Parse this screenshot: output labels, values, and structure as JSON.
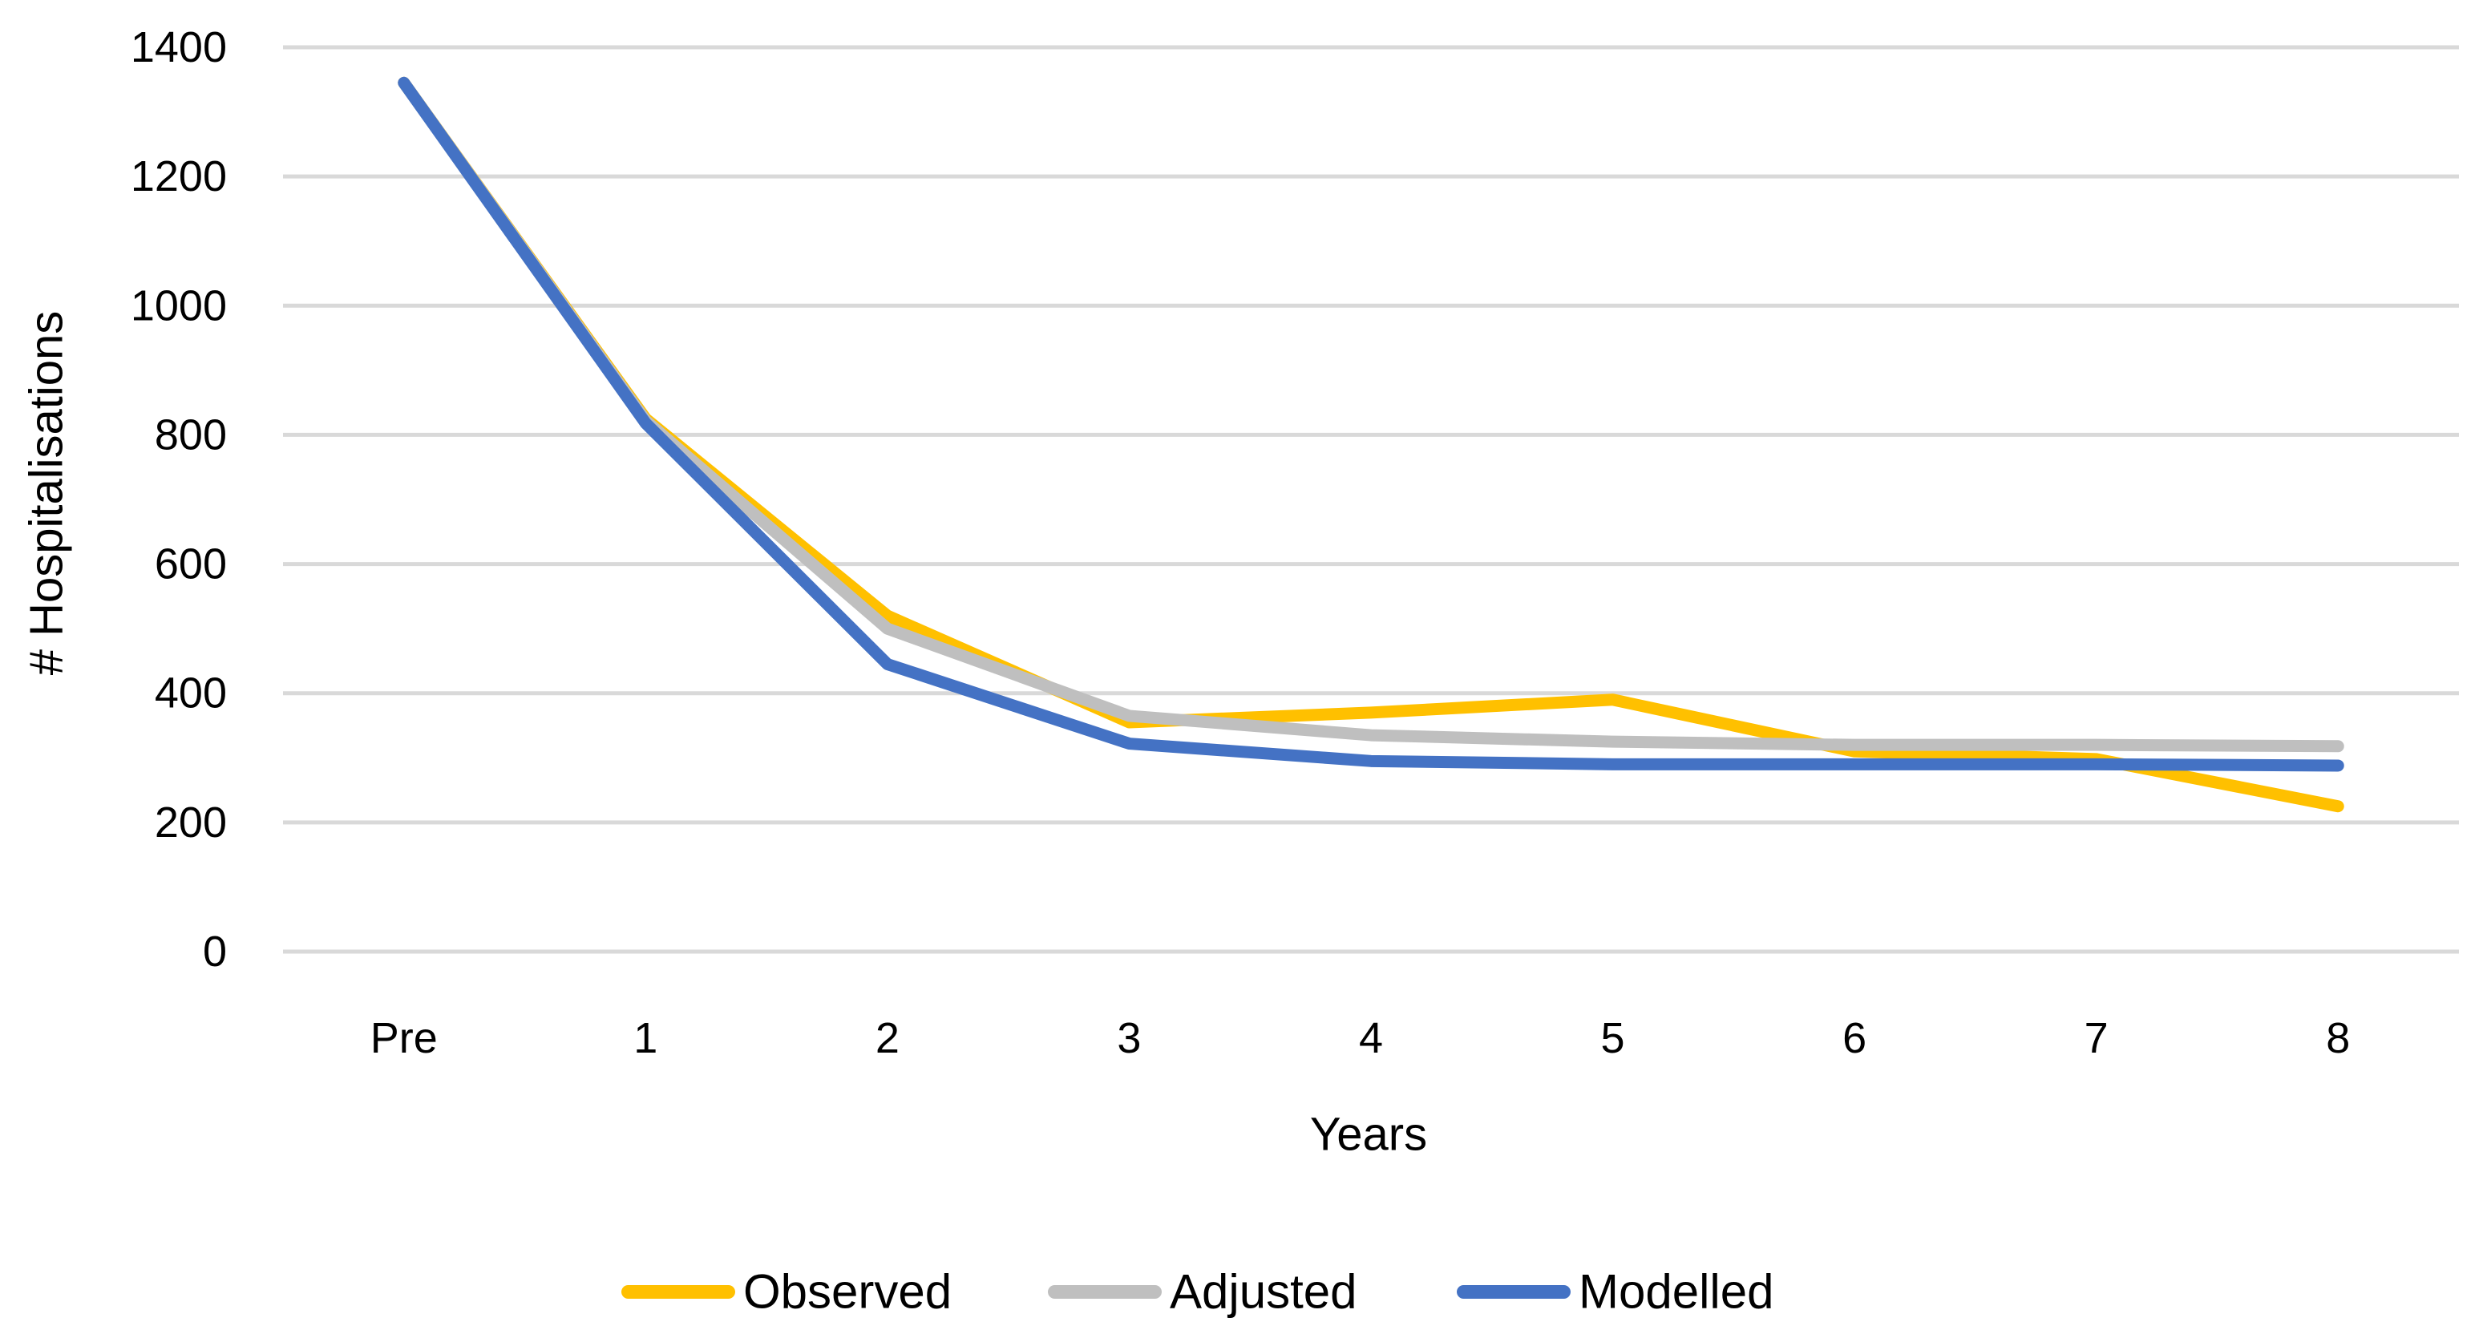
{
  "page": {
    "background": "#ffffff"
  },
  "chart_data": {
    "type": "line",
    "title": "",
    "xlabel": "Years",
    "ylabel": "# Hospitalisations",
    "categories": [
      "Pre",
      "1",
      "2",
      "3",
      "4",
      "5",
      "6",
      "7",
      "8"
    ],
    "series": [
      {
        "name": "Observed",
        "color": "#FFC000",
        "values": [
          1345,
          825,
          520,
          355,
          370,
          390,
          310,
          298,
          225
        ]
      },
      {
        "name": "Adjusted",
        "color": "#BFBFBF",
        "values": [
          1345,
          822,
          500,
          365,
          335,
          325,
          320,
          320,
          318
        ]
      },
      {
        "name": "Modelled",
        "color": "#4472C4",
        "values": [
          1345,
          818,
          445,
          322,
          295,
          290,
          290,
          290,
          288
        ]
      }
    ],
    "ylim": [
      0,
      1400
    ],
    "yticks": [
      0,
      200,
      400,
      600,
      800,
      1000,
      1200,
      1400
    ],
    "grid": "horizontal-only",
    "gridline_color": "#D9D9D9",
    "text_color": "#000000",
    "legend_position": "bottom-center"
  }
}
